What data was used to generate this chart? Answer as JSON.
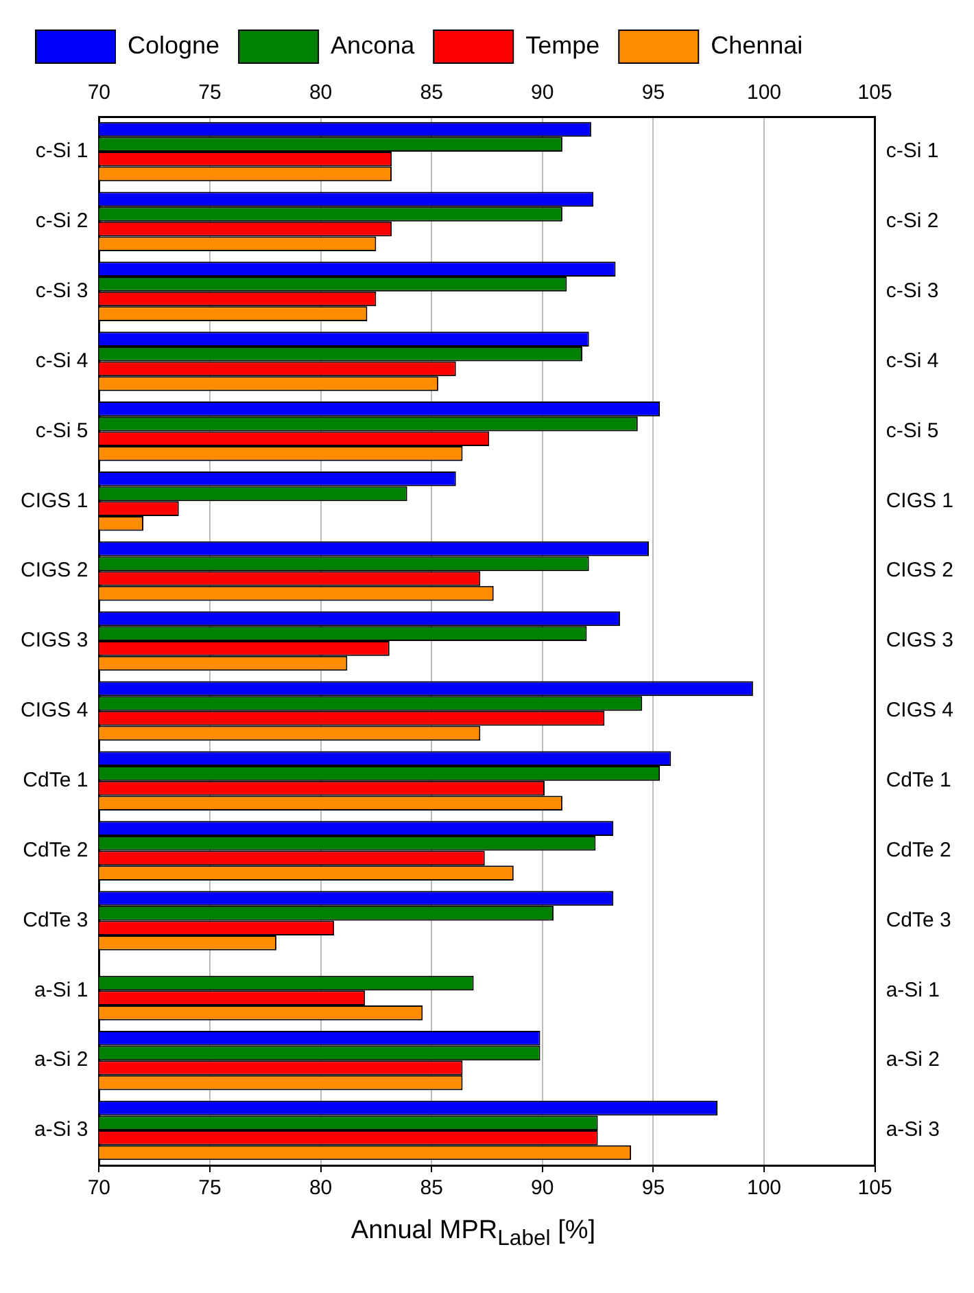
{
  "chart_data": {
    "type": "bar",
    "orientation": "horizontal",
    "xlabel": "Annual MPR$_{Label}$ [%]",
    "categories": [
      "c-Si 1",
      "c-Si 2",
      "c-Si 3",
      "c-Si 4",
      "c-Si 5",
      "CIGS 1",
      "CIGS 2",
      "CIGS 3",
      "CIGS 4",
      "CdTe 1",
      "CdTe 2",
      "CdTe 3",
      "a-Si 1",
      "a-Si 2",
      "a-Si 3"
    ],
    "series": [
      {
        "name": "Cologne",
        "color": "#0000ff",
        "values": [
          92.2,
          92.3,
          93.3,
          92.1,
          95.3,
          86.1,
          94.8,
          93.5,
          99.5,
          95.8,
          93.2,
          93.2,
          null,
          89.9,
          97.9
        ]
      },
      {
        "name": "Ancona",
        "color": "#008000",
        "values": [
          90.9,
          90.9,
          91.1,
          91.8,
          94.3,
          83.9,
          92.1,
          92.0,
          94.5,
          95.3,
          92.4,
          90.5,
          86.9,
          89.9,
          92.5
        ]
      },
      {
        "name": "Tempe",
        "color": "#ff0000",
        "values": [
          83.2,
          83.2,
          82.5,
          86.1,
          87.6,
          73.6,
          87.2,
          83.1,
          92.8,
          90.1,
          87.4,
          80.6,
          82.0,
          86.4,
          92.5
        ]
      },
      {
        "name": "Chennai",
        "color": "#ff8c00",
        "values": [
          83.2,
          82.5,
          82.1,
          85.3,
          86.4,
          72.0,
          87.8,
          81.2,
          87.2,
          90.9,
          88.7,
          78.0,
          84.6,
          86.4,
          94.0
        ]
      }
    ],
    "xlim": [
      70,
      105
    ],
    "xticks": [
      70,
      75,
      80,
      85,
      90,
      95,
      100,
      105
    ],
    "x2lim": [
      70,
      105
    ],
    "x2ticks": [
      70,
      75,
      80,
      85,
      90,
      95,
      100,
      105
    ],
    "grid": "x",
    "legend": "top"
  }
}
